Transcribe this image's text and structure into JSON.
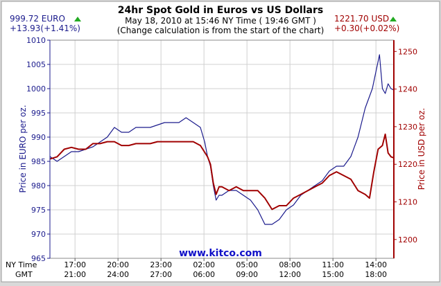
{
  "chart_data": {
    "type": "line",
    "title": "24hr Spot Gold in Euros vs US Dollars",
    "subtitle": "May 18, 2010 at 15:46 NY Time ( 19:46 GMT )",
    "note": "(Change calculation is from the start of the chart)",
    "watermark": "www.kitco.com",
    "grid": true,
    "left_readout": {
      "price": "999.72 EURO",
      "change": "+13.93(+1.41%)"
    },
    "right_readout": {
      "price": "1221.70 USD",
      "change": "+0.30(+0.02%)"
    },
    "x_row_labels": [
      "NY Time",
      "GMT"
    ],
    "x_ticks_ny": [
      "17:00",
      "20:00",
      "23:00",
      "02:00",
      "05:00",
      "08:00",
      "11:00",
      "14:00"
    ],
    "x_ticks_gmt": [
      "21:00",
      "24:00",
      "27:00",
      "06:00",
      "09:00",
      "12:00",
      "15:00",
      "18:00"
    ],
    "xlim": [
      0,
      24
    ],
    "x_tick_positions": [
      1.75,
      4.75,
      7.75,
      10.75,
      13.75,
      16.75,
      19.75,
      22.75
    ],
    "y_left": {
      "label": "Price in EURO per oz.",
      "lim": [
        965,
        1010
      ],
      "ticks": [
        965,
        970,
        975,
        980,
        985,
        990,
        995,
        1000,
        1005,
        1010
      ]
    },
    "y_right": {
      "label": "Price in USD per oz.",
      "lim": [
        1195,
        1253
      ],
      "ticks": [
        1200,
        1210,
        1220,
        1230,
        1240,
        1250
      ]
    },
    "series": [
      {
        "axis": "left",
        "color": "#1a1a8c",
        "x": [
          0,
          0.5,
          1,
          1.5,
          2,
          2.5,
          3,
          3.5,
          4,
          4.5,
          5,
          5.5,
          6,
          6.5,
          7,
          7.5,
          8,
          8.5,
          9,
          9.5,
          10,
          10.5,
          10.8,
          11,
          11.2,
          11.4,
          11.6,
          11.8,
          12,
          12.5,
          13,
          13.5,
          14,
          14.5,
          15,
          15.5,
          16,
          16.5,
          17,
          17.5,
          18,
          18.5,
          19,
          19.5,
          20,
          20.5,
          21,
          21.5,
          22,
          22.5,
          23,
          23.2,
          23.4,
          23.6,
          23.8,
          24
        ],
        "values": [
          986,
          985,
          986,
          987,
          987,
          987.5,
          988,
          989,
          990,
          992,
          991,
          991,
          992,
          992,
          992,
          992.5,
          993,
          993,
          993,
          994,
          993,
          992,
          989,
          986,
          984,
          980,
          977,
          978,
          978,
          979,
          979,
          978,
          977,
          975,
          972,
          972,
          973,
          975,
          976,
          978,
          979,
          980,
          981,
          983,
          984,
          984,
          986,
          990,
          996,
          1000,
          1007,
          1000,
          999,
          1001,
          1000,
          999.7
        ]
      },
      {
        "axis": "right",
        "color": "#a00000",
        "x": [
          0,
          0.5,
          1,
          1.5,
          2,
          2.5,
          3,
          3.5,
          4,
          4.5,
          5,
          5.5,
          6,
          6.5,
          7,
          7.5,
          8,
          8.5,
          9,
          9.5,
          10,
          10.5,
          11,
          11.2,
          11.4,
          11.6,
          11.8,
          12,
          12.5,
          13,
          13.5,
          14,
          14.5,
          15,
          15.5,
          16,
          16.5,
          17,
          17.5,
          18,
          18.5,
          19,
          19.5,
          20,
          20.5,
          21,
          21.5,
          22,
          22.3,
          22.6,
          22.9,
          23.2,
          23.4,
          23.6,
          23.8,
          24
        ],
        "values": [
          1221.4,
          1222,
          1224,
          1224.5,
          1224,
          1224,
          1225.5,
          1225.5,
          1226,
          1226,
          1225,
          1225,
          1225.5,
          1225.5,
          1225.5,
          1226,
          1226,
          1226,
          1226,
          1226,
          1226,
          1225,
          1222,
          1220,
          1215,
          1212,
          1214,
          1214,
          1213,
          1214,
          1213,
          1213,
          1213,
          1211,
          1208,
          1209,
          1209,
          1211,
          1212,
          1213,
          1214,
          1215,
          1217,
          1218,
          1217,
          1216,
          1213,
          1212,
          1211,
          1218,
          1224,
          1225,
          1228,
          1223,
          1222,
          1221.7
        ]
      }
    ]
  }
}
